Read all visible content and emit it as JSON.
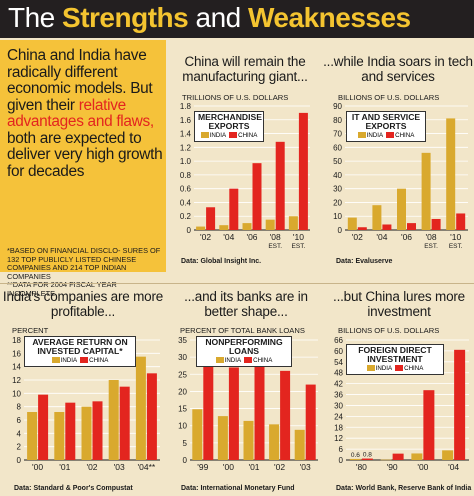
{
  "header": {
    "title_part1": "The ",
    "title_part2": "Strengths",
    "title_part3": " and ",
    "title_part4": "Weaknesses"
  },
  "intro": {
    "text_1": "China and India have radically different economic models. But given their ",
    "text_highlight": "relative advantages and flaws,",
    "text_2": " both are expected to deliver very high growth for decades",
    "footnote_1": "*Based on financial disclo- sures of 132 top publicly listed Chinese companies and 214 top Indian companies",
    "footnote_2": "**Data for 2004 fiscal year incomplete"
  },
  "colors": {
    "india": "#d9a92e",
    "china": "#e3251f",
    "background": "#f2e6c9",
    "intro_bg": "#f5c23a"
  },
  "legend_labels": {
    "india": "INDIA",
    "china": "CHINA"
  },
  "panels": {
    "merch": {
      "title": "China will remain the manufacturing giant...",
      "unit": "TRILLIONS OF U.S. DOLLARS",
      "legend_title": "MERCHANDISE EXPORTS",
      "source": "Data: Global Insight Inc.",
      "est_label": "EST."
    },
    "it": {
      "title": "...while India soars in tech and services",
      "unit": "BILLIONS OF U.S. DOLLARS",
      "legend_title": "IT AND SERVICE EXPORTS",
      "source": "Data: Evaluserve",
      "est_label": "EST."
    },
    "roic": {
      "title": "India's companies are more profitable...",
      "unit": "PERCENT",
      "legend_title": "AVERAGE RETURN ON INVESTED CAPITAL*",
      "source": "Data: Standard & Poor's Compustat"
    },
    "npl": {
      "title": "...and its banks are in better shape...",
      "unit": "PERCENT OF TOTAL BANK LOANS",
      "legend_title": "NONPERFORMING LOANS",
      "source": "Data: International Monetary Fund"
    },
    "fdi": {
      "title": "...but China lures more investment",
      "unit": "BILLIONS OF U.S. DOLLARS",
      "legend_title": "FOREIGN DIRECT INVESTMENT",
      "source": "Data: World Bank, Reserve Bank of India"
    }
  },
  "chart_data": [
    {
      "id": "merch",
      "type": "bar",
      "categories": [
        "'02",
        "'04",
        "'06",
        "'08",
        "'10"
      ],
      "series": [
        {
          "name": "INDIA",
          "values": [
            0.05,
            0.07,
            0.1,
            0.15,
            0.2
          ]
        },
        {
          "name": "CHINA",
          "values": [
            0.33,
            0.6,
            0.97,
            1.28,
            1.7
          ]
        }
      ],
      "ylim": [
        0,
        1.8
      ],
      "yticks": [
        "0",
        "0.2",
        "0.4",
        "0.6",
        "0.8",
        "1.0",
        "1.2",
        "1.4",
        "1.6",
        "1.8"
      ],
      "ytick_values": [
        0,
        0.2,
        0.4,
        0.6,
        0.8,
        1.0,
        1.2,
        1.4,
        1.6,
        1.8
      ],
      "est_from": 3
    },
    {
      "id": "it",
      "type": "bar",
      "categories": [
        "'02",
        "'04",
        "'06",
        "'08",
        "'10"
      ],
      "series": [
        {
          "name": "INDIA",
          "values": [
            9,
            18,
            30,
            56,
            81
          ]
        },
        {
          "name": "CHINA",
          "values": [
            2,
            4,
            5,
            8,
            12
          ]
        }
      ],
      "ylim": [
        0,
        90
      ],
      "yticks": [
        "0",
        "10",
        "20",
        "30",
        "40",
        "50",
        "60",
        "70",
        "80",
        "90"
      ],
      "ytick_values": [
        0,
        10,
        20,
        30,
        40,
        50,
        60,
        70,
        80,
        90
      ],
      "est_from": 3
    },
    {
      "id": "roic",
      "type": "bar",
      "categories": [
        "'00",
        "'01",
        "'02",
        "'03",
        "'04**"
      ],
      "series": [
        {
          "name": "INDIA",
          "values": [
            7.2,
            7.2,
            8.0,
            12.0,
            15.5
          ]
        },
        {
          "name": "CHINA",
          "values": [
            9.8,
            8.6,
            8.8,
            11.0,
            13.0
          ]
        }
      ],
      "ylim": [
        0,
        18
      ],
      "yticks": [
        "0",
        "2",
        "4",
        "6",
        "8",
        "10",
        "12",
        "14",
        "16",
        "18"
      ],
      "ytick_values": [
        0,
        2,
        4,
        6,
        8,
        10,
        12,
        14,
        16,
        18
      ]
    },
    {
      "id": "npl",
      "type": "bar",
      "categories": [
        "'99",
        "'00",
        "'01",
        "'02",
        "'03"
      ],
      "series": [
        {
          "name": "INDIA",
          "values": [
            14.8,
            12.8,
            11.4,
            10.4,
            8.8
          ]
        },
        {
          "name": "CHINA",
          "values": [
            28.5,
            27.0,
            29.8,
            26.0,
            22.0
          ]
        }
      ],
      "ylim": [
        0,
        35
      ],
      "yticks": [
        "0",
        "5",
        "10",
        "15",
        "20",
        "25",
        "30",
        "35"
      ],
      "ytick_values": [
        0,
        5,
        10,
        15,
        20,
        25,
        30,
        35
      ]
    },
    {
      "id": "fdi",
      "type": "bar",
      "categories": [
        "'80",
        "'90",
        "'00",
        "'04"
      ],
      "series": [
        {
          "name": "INDIA",
          "values": [
            0.6,
            0.2,
            3.6,
            5.3
          ]
        },
        {
          "name": "CHINA",
          "values": [
            0.8,
            3.5,
            38.4,
            60.6
          ]
        }
      ],
      "data_labels": [
        [
          "0.6",
          "0.8"
        ],
        null,
        null,
        null
      ],
      "ylim": [
        0,
        66
      ],
      "yticks": [
        "0",
        "6",
        "12",
        "18",
        "24",
        "30",
        "36",
        "42",
        "48",
        "54",
        "60",
        "66"
      ],
      "ytick_values": [
        0,
        6,
        12,
        18,
        24,
        30,
        36,
        42,
        48,
        54,
        60,
        66
      ]
    }
  ]
}
